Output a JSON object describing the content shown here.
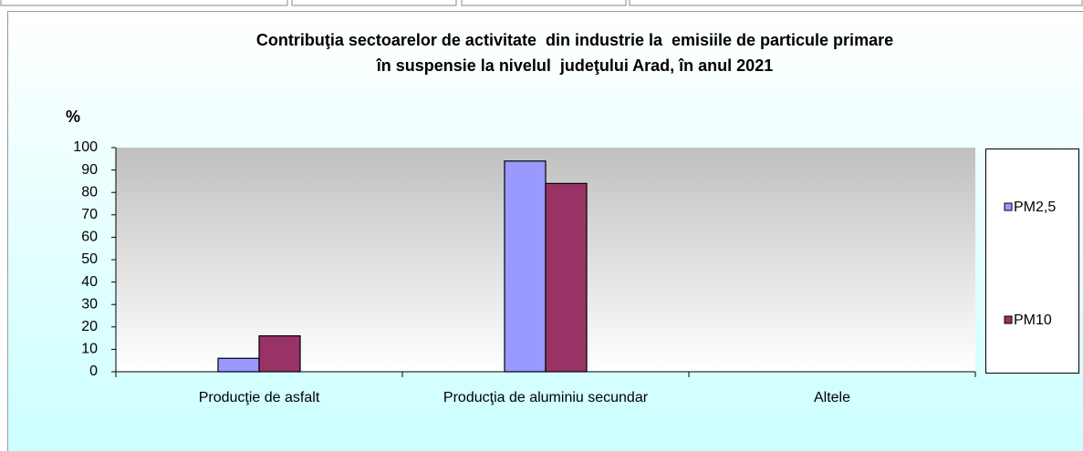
{
  "chart_data": {
    "type": "bar",
    "title": [
      "Contribuţia sectoarelor de activitate  din industrie la  emisiile de particule primare",
      "în suspensie la nivelul  judeţului Arad, în anul 2021"
    ],
    "y_label": "%",
    "categories": [
      "Producţie de asfalt",
      "Producţia de aluminiu secundar",
      "Altele"
    ],
    "series": [
      {
        "name": "PM2,5",
        "color": "#9999ff",
        "values": [
          6,
          94,
          0
        ]
      },
      {
        "name": "PM10",
        "color": "#993366",
        "values": [
          16,
          84,
          0
        ]
      }
    ],
    "ylim": [
      0,
      100
    ],
    "yticks": [
      0,
      10,
      20,
      30,
      40,
      50,
      60,
      70,
      80,
      90,
      100
    ],
    "legend": "right"
  }
}
